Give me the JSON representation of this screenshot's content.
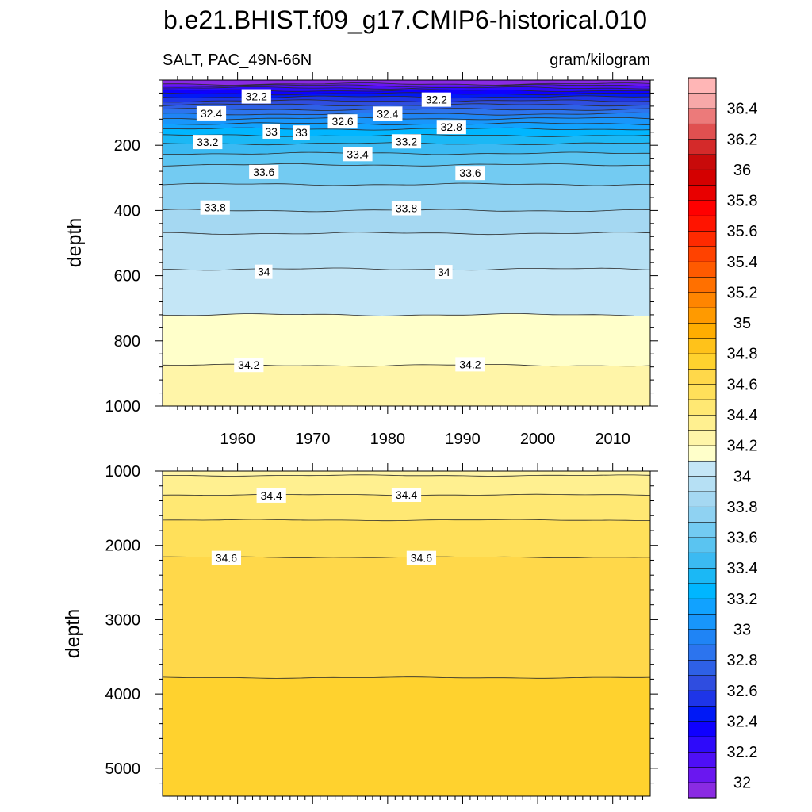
{
  "chart_data": {
    "type": "contour",
    "title": "b.e21.BHIST.f09_g17.CMIP6-historical.010",
    "left_subtitle": "SALT, PAC_49N-66N",
    "right_subtitle": "gram/kilogram",
    "xlim": [
      1950,
      2015
    ],
    "x_ticks": [
      1960,
      1970,
      1980,
      1990,
      2000,
      2010
    ],
    "panels": [
      {
        "name": "upper",
        "ylabel": "depth",
        "ylim": [
          0,
          1000
        ],
        "y_ticks": [
          200,
          400,
          600,
          800,
          1000
        ],
        "show_x_tick_labels": true,
        "contour_lines": [
          {
            "level": 32.0,
            "depth": 12
          },
          {
            "level": 32.1,
            "depth": 17
          },
          {
            "level": 32.2,
            "depth": 24
          },
          {
            "level": 32.3,
            "depth": 32
          },
          {
            "level": 32.4,
            "depth": 42
          },
          {
            "level": 32.5,
            "depth": 52
          },
          {
            "level": 32.6,
            "depth": 64
          },
          {
            "level": 32.7,
            "depth": 76
          },
          {
            "level": 32.8,
            "depth": 90
          },
          {
            "level": 32.9,
            "depth": 104
          },
          {
            "level": 33.0,
            "depth": 118
          },
          {
            "level": 33.1,
            "depth": 134
          },
          {
            "level": 33.2,
            "depth": 150
          },
          {
            "level": 33.3,
            "depth": 170
          },
          {
            "level": 33.4,
            "depth": 195
          },
          {
            "level": 33.5,
            "depth": 225
          },
          {
            "level": 33.6,
            "depth": 260
          },
          {
            "level": 33.7,
            "depth": 320
          },
          {
            "level": 33.8,
            "depth": 400
          },
          {
            "level": 33.9,
            "depth": 470
          },
          {
            "level": 34.0,
            "depth": 580
          },
          {
            "level": 34.1,
            "depth": 720
          },
          {
            "level": 34.2,
            "depth": 875
          }
        ],
        "contour_labels": [
          {
            "text": "32.2",
            "x": 1962.5,
            "y": 50
          },
          {
            "text": "32.2",
            "x": 1986.5,
            "y": 60
          },
          {
            "text": "32.4",
            "x": 1956.5,
            "y": 102
          },
          {
            "text": "32.4",
            "x": 1980,
            "y": 103
          },
          {
            "text": "32.6",
            "x": 1974,
            "y": 127
          },
          {
            "text": "32.8",
            "x": 1988.5,
            "y": 144
          },
          {
            "text": "33",
            "x": 1964.5,
            "y": 158
          },
          {
            "text": "33",
            "x": 1968.5,
            "y": 161
          },
          {
            "text": "33.2",
            "x": 1956,
            "y": 190
          },
          {
            "text": "33.2",
            "x": 1982.5,
            "y": 188
          },
          {
            "text": "33.4",
            "x": 1976,
            "y": 227
          },
          {
            "text": "33.6",
            "x": 1963.5,
            "y": 282
          },
          {
            "text": "33.6",
            "x": 1991,
            "y": 285
          },
          {
            "text": "33.8",
            "x": 1957,
            "y": 391
          },
          {
            "text": "33.8",
            "x": 1982.5,
            "y": 393
          },
          {
            "text": "34",
            "x": 1963.5,
            "y": 588
          },
          {
            "text": "34",
            "x": 1987.5,
            "y": 589
          },
          {
            "text": "34.2",
            "x": 1961.5,
            "y": 874
          },
          {
            "text": "34.2",
            "x": 1991,
            "y": 872
          }
        ]
      },
      {
        "name": "lower",
        "ylabel": "depth",
        "ylim": [
          1000,
          5375
        ],
        "y_ticks": [
          1000,
          2000,
          3000,
          4000,
          5000
        ],
        "show_x_tick_labels": false,
        "contour_lines": [
          {
            "level": 34.3,
            "depth": 1060
          },
          {
            "level": 34.4,
            "depth": 1320
          },
          {
            "level": 34.5,
            "depth": 1660
          },
          {
            "level": 34.6,
            "depth": 2160
          },
          {
            "level": 34.7,
            "depth": 3780
          }
        ],
        "contour_labels": [
          {
            "text": "34.4",
            "x": 1964.5,
            "y": 1330
          },
          {
            "text": "34.4",
            "x": 1982.5,
            "y": 1320
          },
          {
            "text": "34.6",
            "x": 1958.5,
            "y": 2170
          },
          {
            "text": "34.6",
            "x": 1984.5,
            "y": 2170
          }
        ]
      }
    ],
    "colorbar": {
      "levels": [
        32,
        32.1,
        32.2,
        32.3,
        32.4,
        32.5,
        32.6,
        32.7,
        32.8,
        32.9,
        33,
        33.1,
        33.2,
        33.3,
        33.4,
        33.5,
        33.6,
        33.7,
        33.8,
        33.9,
        34,
        34.1,
        34.2,
        34.3,
        34.4,
        34.5,
        34.6,
        34.7,
        34.8,
        34.9,
        35,
        35.1,
        35.2,
        35.3,
        35.4,
        35.5,
        35.6,
        35.7,
        35.8,
        35.9,
        36,
        36.1,
        36.2,
        36.3,
        36.4,
        36.5
      ],
      "tick_labels": [
        "32",
        "32.2",
        "32.4",
        "32.6",
        "32.8",
        "33",
        "33.2",
        "33.4",
        "33.6",
        "33.8",
        "34",
        "34.2",
        "34.4",
        "34.6",
        "34.8",
        "35",
        "35.2",
        "35.4",
        "35.6",
        "35.8",
        "36",
        "36.2",
        "36.4"
      ],
      "colors": [
        "#8a2be2",
        "#6a17f0",
        "#4e0ff6",
        "#2e0afa",
        "#0f00ff",
        "#0019f6",
        "#1e35e8",
        "#2f4de0",
        "#2e60e6",
        "#2c74ee",
        "#1f84f5",
        "#1896fb",
        "#11a2ff",
        "#00b6ff",
        "#1bb8f5",
        "#3bbaf2",
        "#5ac4f1",
        "#73cbf2",
        "#8fd2f2",
        "#a5d8f2",
        "#b6e0f4",
        "#c4e6f6",
        "#ffffca",
        "#fff5a8",
        "#fff090",
        "#ffe873",
        "#ffe05a",
        "#ffd84a",
        "#ffd22e",
        "#ffc21a",
        "#ffad00",
        "#ff9a00",
        "#ff8500",
        "#ff7000",
        "#ff5a00",
        "#ff4200",
        "#ff2a00",
        "#ff1400",
        "#ff0000",
        "#e80000",
        "#d40000",
        "#c80a0a",
        "#d42a2a",
        "#e05050",
        "#ec7a7a",
        "#f7a8a8",
        "#ffb6b6"
      ]
    }
  }
}
